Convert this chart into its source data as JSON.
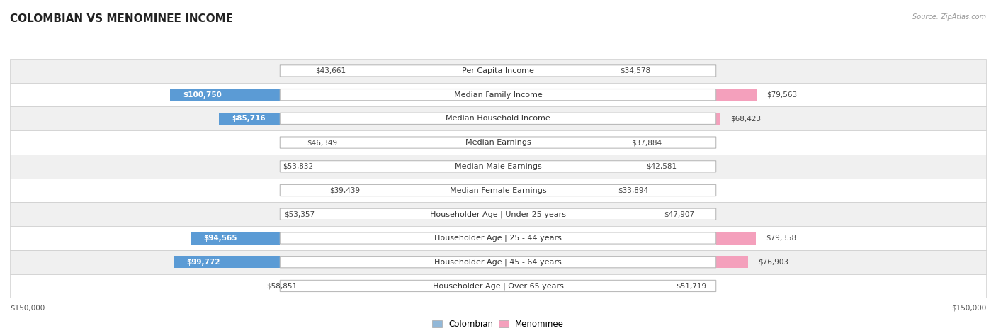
{
  "title": "COLOMBIAN VS MENOMINEE INCOME",
  "source": "Source: ZipAtlas.com",
  "categories": [
    "Per Capita Income",
    "Median Family Income",
    "Median Household Income",
    "Median Earnings",
    "Median Male Earnings",
    "Median Female Earnings",
    "Householder Age | Under 25 years",
    "Householder Age | 25 - 44 years",
    "Householder Age | 45 - 64 years",
    "Householder Age | Over 65 years"
  ],
  "colombian_values": [
    43661,
    100750,
    85716,
    46349,
    53832,
    39439,
    53357,
    94565,
    99772,
    58851
  ],
  "menominee_values": [
    34578,
    79563,
    68423,
    37884,
    42581,
    33894,
    47907,
    79358,
    76903,
    51719
  ],
  "colombian_color": "#92b8d8",
  "menominee_color": "#f4a0bc",
  "colombian_color_dark": "#5b9bd5",
  "menominee_color_dark": "#e8607a",
  "colombian_label": "Colombian",
  "menominee_label": "Menominee",
  "max_value": 150000,
  "background_color": "#ffffff",
  "row_bg_odd": "#f0f0f0",
  "row_bg_even": "#ffffff",
  "title_fontsize": 11,
  "label_fontsize": 8.0,
  "value_fontsize": 7.5,
  "legend_fontsize": 8.5,
  "value_threshold": 80000
}
